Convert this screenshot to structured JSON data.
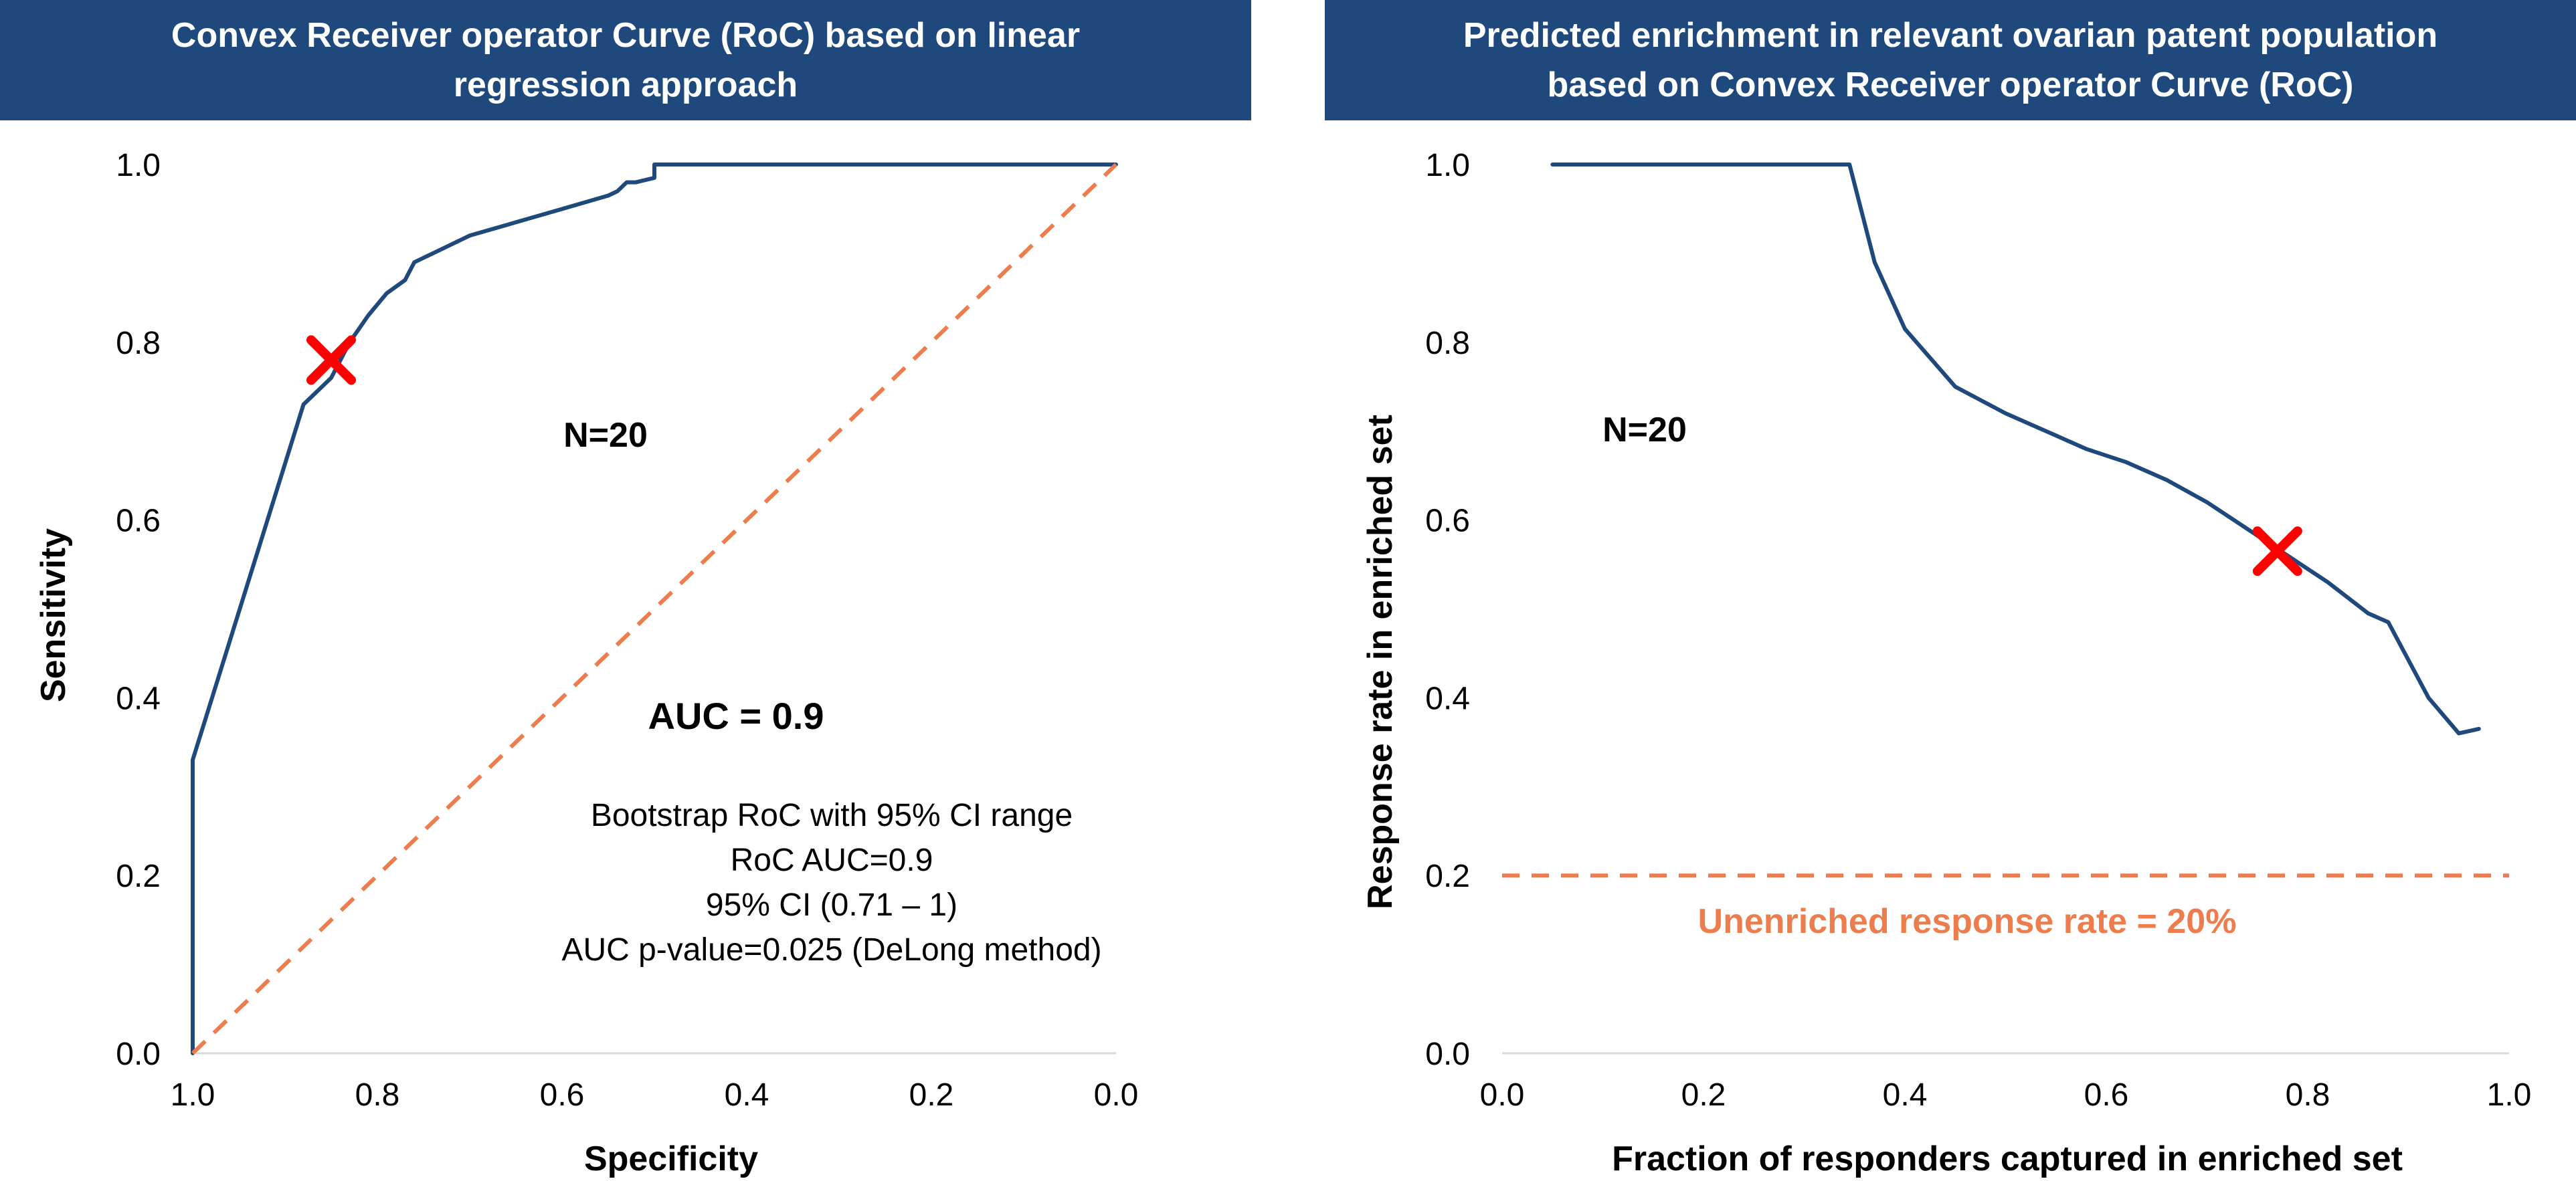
{
  "chart_data": [
    {
      "type": "line",
      "title": "Convex Receiver operator Curve (RoC) based on linear\nregression approach",
      "xlabel": "Specificity",
      "ylabel": "Sensitivity",
      "xlim": [
        1.0,
        0.0
      ],
      "ylim": [
        0.0,
        1.0
      ],
      "x_reversed": true,
      "x_ticks": [
        "1.0",
        "0.8",
        "0.6",
        "0.4",
        "0.2",
        "0.0"
      ],
      "y_ticks": [
        "0.0",
        "0.2",
        "0.4",
        "0.6",
        "0.8",
        "1.0"
      ],
      "grid": false,
      "series": [
        {
          "color": "#1f497d",
          "x": [
            1.0,
            1.0,
            0.88,
            0.85,
            0.83,
            0.81,
            0.79,
            0.77,
            0.76,
            0.74,
            0.7,
            0.65,
            0.6,
            0.55,
            0.54,
            0.53,
            0.52,
            0.5,
            0.5,
            0.0
          ],
          "y": [
            0.0,
            0.33,
            0.73,
            0.76,
            0.8,
            0.83,
            0.855,
            0.87,
            0.89,
            0.9,
            0.92,
            0.935,
            0.95,
            0.965,
            0.97,
            0.98,
            0.98,
            0.985,
            1.0,
            1.0
          ]
        },
        {
          "color": "#ed7d4c",
          "dashed": true,
          "x": [
            1.0,
            0.0
          ],
          "y": [
            0.0,
            1.0
          ]
        }
      ],
      "marker": {
        "x": 0.85,
        "y": 0.78,
        "color": "#ff0000",
        "symbol": "x"
      },
      "annotations": {
        "n": "N=20",
        "auc": "AUC = 0.9",
        "stats": [
          "Bootstrap RoC with 95% CI range",
          "RoC AUC=0.9",
          "95% CI (0.71 – 1)",
          "AUC p-value=0.025 (DeLong method)"
        ]
      }
    },
    {
      "type": "line",
      "title": "Predicted enrichment in relevant ovarian patent population\nbased on Convex Receiver operator Curve (RoC)",
      "xlabel": "Fraction of responders captured in enriched set",
      "ylabel": "Response rate in enriched set",
      "xlim": [
        0.0,
        1.0
      ],
      "ylim": [
        0.0,
        1.0
      ],
      "x_ticks": [
        "0.0",
        "0.2",
        "0.4",
        "0.6",
        "0.8",
        "1.0"
      ],
      "y_ticks": [
        "0.0",
        "0.2",
        "0.4",
        "0.6",
        "0.8",
        "1.0"
      ],
      "grid": false,
      "series": [
        {
          "color": "#1f497d",
          "x": [
            0.05,
            0.1,
            0.2,
            0.3,
            0.345,
            0.37,
            0.4,
            0.45,
            0.5,
            0.55,
            0.56,
            0.58,
            0.62,
            0.66,
            0.7,
            0.74,
            0.78,
            0.82,
            0.86,
            0.88,
            0.92,
            0.95,
            0.97
          ],
          "y": [
            1.0,
            1.0,
            1.0,
            1.0,
            1.0,
            0.89,
            0.815,
            0.75,
            0.72,
            0.695,
            0.69,
            0.68,
            0.665,
            0.645,
            0.62,
            0.59,
            0.56,
            0.53,
            0.495,
            0.485,
            0.4,
            0.36,
            0.365
          ]
        }
      ],
      "reference_line": {
        "y": 0.2,
        "color": "#ed7d4c",
        "dashed": true,
        "label": "Unenriched response rate = 20%"
      },
      "marker": {
        "x": 0.77,
        "y": 0.565,
        "color": "#ff0000",
        "symbol": "x"
      },
      "annotations": {
        "n": "N=20"
      }
    }
  ]
}
